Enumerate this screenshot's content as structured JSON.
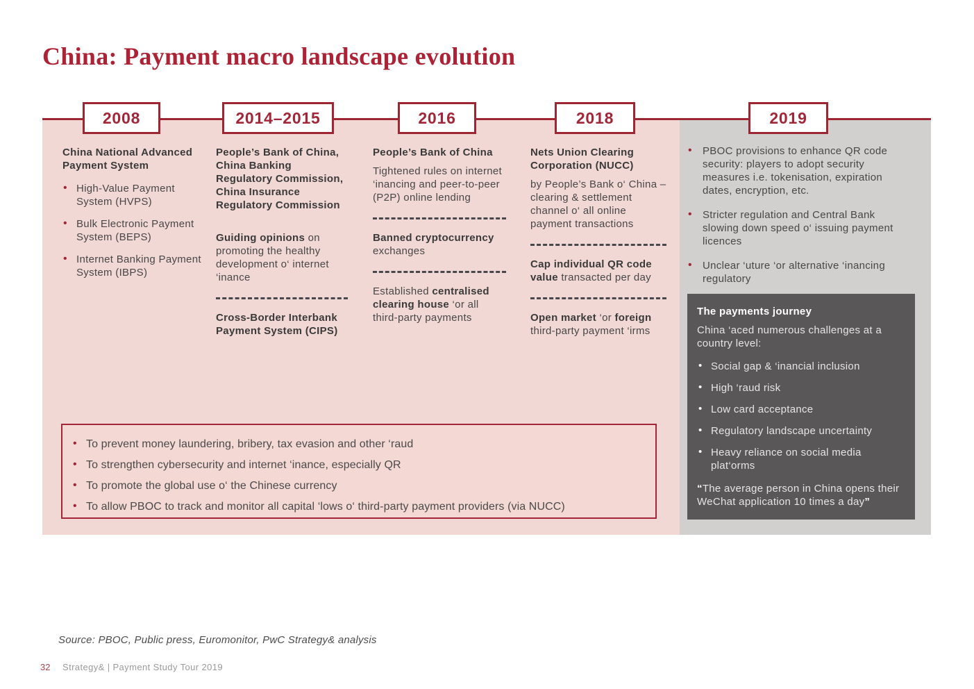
{
  "title": "China: Payment macro landscape evolution",
  "colors": {
    "brand_red": "#a32638",
    "border_red": "#9e2633",
    "pink_band": "#f2d8d4",
    "gray_band": "#d1d0cf",
    "dark_box": "#595757",
    "body_text": "#474747",
    "divider_gray": "#47484d"
  },
  "timeline": {
    "col2008": {
      "year": "2008",
      "heading": "China National Advanced Payment System",
      "bullets": [
        "High-Value Payment System (HVPS)",
        "Bulk Electronic Payment System (BEPS)",
        "Internet Banking Payment System (IBPS)"
      ]
    },
    "col2014": {
      "year": "2014–2015",
      "heading": "People’s Bank of China, China Banking Regulatory Commission, China Insurance Regulatory Commission",
      "guiding_bold": "Guiding opinions",
      "guiding_rest": " on promoting the healthy development o‘ internet ‘inance",
      "cips": "Cross-Border Interbank Payment System (CIPS)"
    },
    "col2016": {
      "year": "2016",
      "heading": "People’s Bank of China",
      "tightened": "Tightened rules on internet ‘inancing and peer-to-peer (P2P) online lending",
      "banned_bold": "Banned cryptocurrency",
      "banned_rest": " exchanges",
      "established_pre": "Established ",
      "established_bold": "centralised clearing house",
      "established_post": " ‘or all third-party payments"
    },
    "col2018": {
      "year": "2018",
      "heading": "Nets Union Clearing Corporation (NUCC)",
      "by_pboc": "by People’s Bank o‘ China – clearing & settlement channel o‘ all online payment transactions",
      "cap_bold": "Cap individual QR code value",
      "cap_rest": " transacted per day",
      "open_bold": "Open market",
      "open_mid": " ‘or ",
      "foreign_bold": "foreign",
      "open_rest": " third-party payment ‘irms"
    },
    "col2019": {
      "year": "2019",
      "bullets": [
        "PBOC provisions to enhance QR code security: players to adopt security measures i.e. tokenisation, expiration dates, encryption, etc.",
        "Stricter regulation and Central Bank slowing down speed o‘ issuing payment licences",
        "Unclear ‘uture ‘or alternative ‘inancing regulatory"
      ]
    }
  },
  "payments_journey": {
    "title": "The payments journey",
    "intro": "China ‘aced numerous challenges at a country level:",
    "bullets": [
      "Social gap & ‘inancial inclusion",
      "High ‘raud risk",
      "Low card acceptance",
      "Regulatory landscape uncertainty",
      "Heavy reliance on social media plat‘orms"
    ],
    "quote_open": "“",
    "quote_text": "The average person in China opens their WeChat application 10 times a day",
    "quote_close": "”"
  },
  "goals_box": {
    "bullets": [
      "To prevent money laundering, bribery, tax evasion and other ‘raud",
      "To strengthen cybersecurity and internet ‘inance, especially QR",
      "To promote the global use o‘ the Chinese currency",
      "To allow PBOC to track and monitor all capital ‘lows o‘ third-party payment providers (via NUCC)"
    ]
  },
  "footer": {
    "source": "Source: PBOC, Public press, Euromonitor, PwC Strategy& analysis",
    "page_number": "32",
    "brand": "Strategy& |  Payment Study Tour 2019"
  }
}
